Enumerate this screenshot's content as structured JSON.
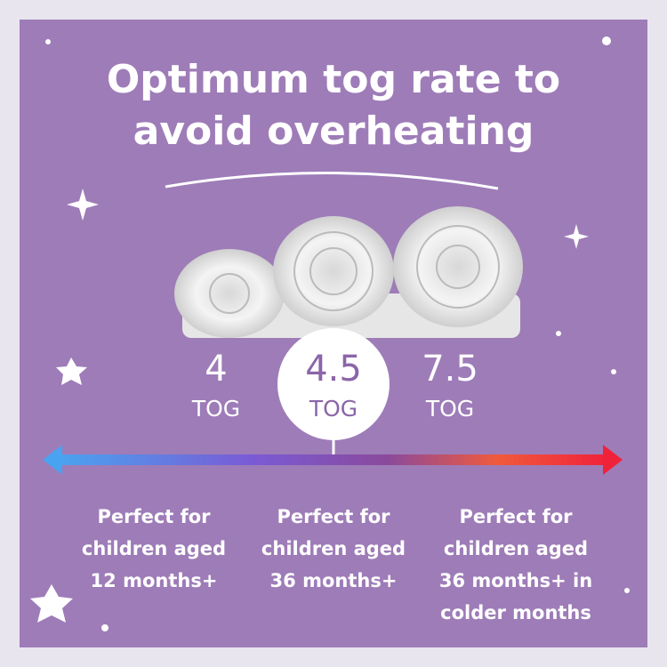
{
  "header": {
    "title_lines": [
      "Optimum tog rate to",
      "avoid overheating"
    ]
  },
  "togs": [
    {
      "value": "4",
      "unit": "TOG",
      "description_lines": [
        "Perfect for",
        "children aged",
        "12 months+"
      ]
    },
    {
      "value": "4.5",
      "unit": "TOG",
      "description_lines": [
        "Perfect for",
        "children aged",
        "36 months+"
      ]
    },
    {
      "value": "7.5",
      "unit": "TOG",
      "description_lines": [
        "Perfect for",
        "children aged",
        "36 months+ in",
        "colder months"
      ]
    }
  ]
}
